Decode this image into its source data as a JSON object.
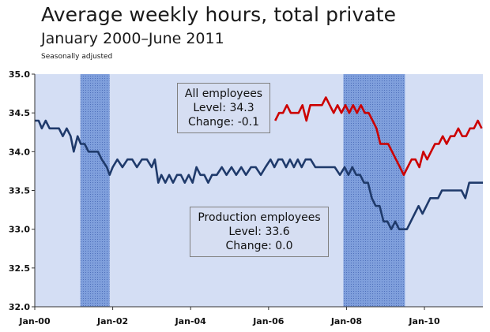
{
  "chart_data": {
    "type": "line",
    "title": "Average weekly hours, total private",
    "subtitle": "January 2000–June 2011",
    "note": "Seasonally adjusted",
    "ylim": [
      32.0,
      35.0
    ],
    "y_ticks": [
      "32.0",
      "32.5",
      "33.0",
      "33.5",
      "34.0",
      "34.5",
      "35.0"
    ],
    "x_ticks": [
      {
        "label": "Jan-00",
        "year": 2000.0
      },
      {
        "label": "Jan-02",
        "year": 2002.0
      },
      {
        "label": "Jan-04",
        "year": 2004.0
      },
      {
        "label": "Jan-06",
        "year": 2006.0
      },
      {
        "label": "Jan-08",
        "year": 2008.0
      },
      {
        "label": "Jan-10",
        "year": 2010.0
      }
    ],
    "xlim": [
      2000.0,
      2011.5
    ],
    "recessions": [
      {
        "start": 2001.17,
        "end": 2001.92
      },
      {
        "start": 2007.92,
        "end": 2009.5
      }
    ],
    "series": [
      {
        "name": "Production employees",
        "color": "#1f3a6b",
        "points": [
          [
            2000.0,
            34.4
          ],
          [
            2000.1,
            34.4
          ],
          [
            2000.18,
            34.3
          ],
          [
            2000.28,
            34.4
          ],
          [
            2000.38,
            34.3
          ],
          [
            2000.5,
            34.3
          ],
          [
            2000.62,
            34.3
          ],
          [
            2000.72,
            34.2
          ],
          [
            2000.82,
            34.3
          ],
          [
            2000.92,
            34.2
          ],
          [
            2001.0,
            34.0
          ],
          [
            2001.1,
            34.2
          ],
          [
            2001.18,
            34.1
          ],
          [
            2001.28,
            34.1
          ],
          [
            2001.38,
            34.0
          ],
          [
            2001.5,
            34.0
          ],
          [
            2001.62,
            34.0
          ],
          [
            2001.72,
            33.9
          ],
          [
            2001.85,
            33.8
          ],
          [
            2001.92,
            33.7
          ],
          [
            2002.0,
            33.8
          ],
          [
            2002.12,
            33.9
          ],
          [
            2002.25,
            33.8
          ],
          [
            2002.38,
            33.9
          ],
          [
            2002.5,
            33.9
          ],
          [
            2002.62,
            33.8
          ],
          [
            2002.75,
            33.9
          ],
          [
            2002.88,
            33.9
          ],
          [
            2003.0,
            33.8
          ],
          [
            2003.08,
            33.9
          ],
          [
            2003.17,
            33.6
          ],
          [
            2003.25,
            33.7
          ],
          [
            2003.35,
            33.6
          ],
          [
            2003.45,
            33.7
          ],
          [
            2003.55,
            33.6
          ],
          [
            2003.65,
            33.7
          ],
          [
            2003.75,
            33.7
          ],
          [
            2003.85,
            33.6
          ],
          [
            2003.95,
            33.7
          ],
          [
            2004.05,
            33.6
          ],
          [
            2004.15,
            33.8
          ],
          [
            2004.25,
            33.7
          ],
          [
            2004.35,
            33.7
          ],
          [
            2004.45,
            33.6
          ],
          [
            2004.55,
            33.7
          ],
          [
            2004.67,
            33.7
          ],
          [
            2004.8,
            33.8
          ],
          [
            2004.92,
            33.7
          ],
          [
            2005.05,
            33.8
          ],
          [
            2005.17,
            33.7
          ],
          [
            2005.3,
            33.8
          ],
          [
            2005.42,
            33.7
          ],
          [
            2005.55,
            33.8
          ],
          [
            2005.67,
            33.8
          ],
          [
            2005.8,
            33.7
          ],
          [
            2005.92,
            33.8
          ],
          [
            2006.05,
            33.9
          ],
          [
            2006.15,
            33.8
          ],
          [
            2006.25,
            33.9
          ],
          [
            2006.35,
            33.9
          ],
          [
            2006.45,
            33.8
          ],
          [
            2006.55,
            33.9
          ],
          [
            2006.65,
            33.8
          ],
          [
            2006.75,
            33.9
          ],
          [
            2006.85,
            33.8
          ],
          [
            2006.95,
            33.9
          ],
          [
            2007.08,
            33.9
          ],
          [
            2007.2,
            33.8
          ],
          [
            2007.33,
            33.8
          ],
          [
            2007.45,
            33.8
          ],
          [
            2007.58,
            33.8
          ],
          [
            2007.7,
            33.8
          ],
          [
            2007.83,
            33.7
          ],
          [
            2007.95,
            33.8
          ],
          [
            2008.05,
            33.7
          ],
          [
            2008.15,
            33.8
          ],
          [
            2008.25,
            33.7
          ],
          [
            2008.35,
            33.7
          ],
          [
            2008.45,
            33.6
          ],
          [
            2008.55,
            33.6
          ],
          [
            2008.65,
            33.4
          ],
          [
            2008.75,
            33.3
          ],
          [
            2008.85,
            33.3
          ],
          [
            2008.95,
            33.1
          ],
          [
            2009.05,
            33.1
          ],
          [
            2009.15,
            33.0
          ],
          [
            2009.25,
            33.1
          ],
          [
            2009.35,
            33.0
          ],
          [
            2009.45,
            33.0
          ],
          [
            2009.55,
            33.0
          ],
          [
            2009.65,
            33.1
          ],
          [
            2009.75,
            33.2
          ],
          [
            2009.85,
            33.3
          ],
          [
            2009.95,
            33.2
          ],
          [
            2010.05,
            33.3
          ],
          [
            2010.15,
            33.4
          ],
          [
            2010.25,
            33.4
          ],
          [
            2010.35,
            33.4
          ],
          [
            2010.45,
            33.5
          ],
          [
            2010.55,
            33.5
          ],
          [
            2010.65,
            33.5
          ],
          [
            2010.75,
            33.5
          ],
          [
            2010.85,
            33.5
          ],
          [
            2010.95,
            33.5
          ],
          [
            2011.05,
            33.4
          ],
          [
            2011.15,
            33.6
          ],
          [
            2011.25,
            33.6
          ],
          [
            2011.35,
            33.6
          ],
          [
            2011.5,
            33.6
          ]
        ]
      },
      {
        "name": "All employees",
        "color": "#cc0000",
        "points": [
          [
            2006.17,
            34.4
          ],
          [
            2006.27,
            34.5
          ],
          [
            2006.37,
            34.5
          ],
          [
            2006.47,
            34.6
          ],
          [
            2006.57,
            34.5
          ],
          [
            2006.67,
            34.5
          ],
          [
            2006.77,
            34.5
          ],
          [
            2006.87,
            34.6
          ],
          [
            2006.97,
            34.4
          ],
          [
            2007.07,
            34.6
          ],
          [
            2007.17,
            34.6
          ],
          [
            2007.27,
            34.6
          ],
          [
            2007.37,
            34.6
          ],
          [
            2007.47,
            34.7
          ],
          [
            2007.57,
            34.6
          ],
          [
            2007.67,
            34.5
          ],
          [
            2007.77,
            34.6
          ],
          [
            2007.87,
            34.5
          ],
          [
            2007.97,
            34.6
          ],
          [
            2008.07,
            34.5
          ],
          [
            2008.17,
            34.6
          ],
          [
            2008.27,
            34.5
          ],
          [
            2008.37,
            34.6
          ],
          [
            2008.47,
            34.5
          ],
          [
            2008.57,
            34.5
          ],
          [
            2008.67,
            34.4
          ],
          [
            2008.77,
            34.3
          ],
          [
            2008.87,
            34.1
          ],
          [
            2008.97,
            34.1
          ],
          [
            2009.07,
            34.1
          ],
          [
            2009.17,
            34.0
          ],
          [
            2009.27,
            33.9
          ],
          [
            2009.37,
            33.8
          ],
          [
            2009.47,
            33.7
          ],
          [
            2009.57,
            33.8
          ],
          [
            2009.67,
            33.9
          ],
          [
            2009.77,
            33.9
          ],
          [
            2009.87,
            33.8
          ],
          [
            2009.97,
            34.0
          ],
          [
            2010.07,
            33.9
          ],
          [
            2010.17,
            34.0
          ],
          [
            2010.27,
            34.1
          ],
          [
            2010.37,
            34.1
          ],
          [
            2010.47,
            34.2
          ],
          [
            2010.57,
            34.1
          ],
          [
            2010.67,
            34.2
          ],
          [
            2010.77,
            34.2
          ],
          [
            2010.87,
            34.3
          ],
          [
            2010.97,
            34.2
          ],
          [
            2011.07,
            34.2
          ],
          [
            2011.17,
            34.3
          ],
          [
            2011.27,
            34.3
          ],
          [
            2011.37,
            34.4
          ],
          [
            2011.47,
            34.3
          ]
        ]
      }
    ],
    "annotations": [
      {
        "id": "all",
        "lines": [
          "All employees",
          "Level: 34.3",
          "Change: -0.1"
        ]
      },
      {
        "id": "prod",
        "lines": [
          "Production employees",
          "Level: 33.6",
          "Change: 0.0"
        ]
      }
    ]
  }
}
